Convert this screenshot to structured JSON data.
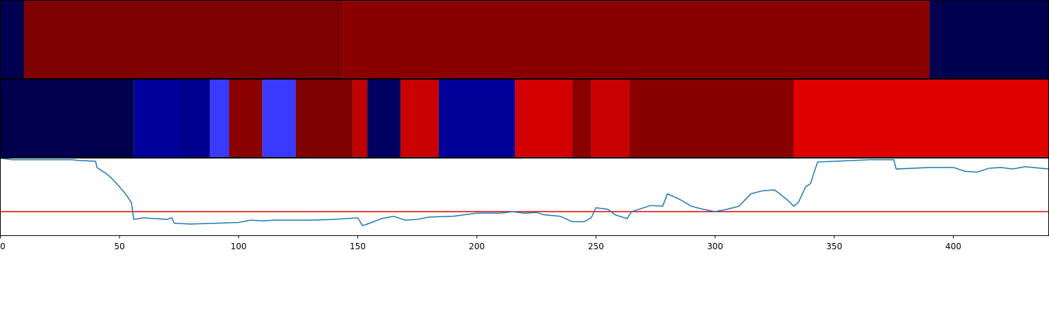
{
  "chart_data": {
    "type": "segmentation",
    "xlim": [
      0,
      440
    ],
    "xticks": [
      0,
      50,
      100,
      150,
      200,
      250,
      300,
      350,
      400
    ],
    "tracks": [
      {
        "segments": [
          {
            "start": 0,
            "end": 10,
            "color": "#000050"
          },
          {
            "start": 10,
            "end": 144,
            "color": "#7f0000"
          },
          {
            "start": 144,
            "end": 390,
            "color": "#8a0000"
          },
          {
            "start": 390,
            "end": 440,
            "color": "#000050"
          }
        ]
      },
      {
        "segments": [
          {
            "start": 0,
            "end": 56,
            "color": "#00004c"
          },
          {
            "start": 56,
            "end": 75,
            "color": "#00009a"
          },
          {
            "start": 75,
            "end": 88,
            "color": "#00008f"
          },
          {
            "start": 88,
            "end": 96,
            "color": "#3a3aff"
          },
          {
            "start": 96,
            "end": 110,
            "color": "#8b0000"
          },
          {
            "start": 110,
            "end": 124,
            "color": "#3a3aff"
          },
          {
            "start": 124,
            "end": 148,
            "color": "#7f0000"
          },
          {
            "start": 148,
            "end": 154,
            "color": "#c00000"
          },
          {
            "start": 154,
            "end": 168,
            "color": "#000060"
          },
          {
            "start": 168,
            "end": 184,
            "color": "#c80000"
          },
          {
            "start": 184,
            "end": 216,
            "color": "#000099"
          },
          {
            "start": 216,
            "end": 240,
            "color": "#d40000"
          },
          {
            "start": 240,
            "end": 248,
            "color": "#8b0000"
          },
          {
            "start": 248,
            "end": 264,
            "color": "#c80000"
          },
          {
            "start": 264,
            "end": 333,
            "color": "#880000"
          },
          {
            "start": 333,
            "end": 440,
            "color": "#e00000"
          }
        ]
      }
    ],
    "line": {
      "color": "#1f77b4",
      "ylim": [
        0,
        1
      ],
      "x": [
        0,
        5,
        30,
        33,
        40,
        40.5,
        45,
        48,
        52,
        55,
        56,
        60,
        70,
        72,
        73,
        80,
        90,
        100,
        105,
        110,
        115,
        120,
        130,
        140,
        150,
        152,
        155,
        160,
        165,
        170,
        175,
        180,
        190,
        200,
        210,
        215,
        220,
        225,
        228,
        235,
        240,
        245,
        248,
        250,
        255,
        258,
        263,
        265,
        270,
        273,
        278,
        280,
        285,
        290,
        295,
        300,
        305,
        310,
        315,
        320,
        325,
        330,
        333,
        335,
        338,
        340,
        343,
        350,
        365,
        375,
        376,
        390,
        400,
        405,
        410,
        415,
        420,
        425,
        430,
        440
      ],
      "values": [
        1.0,
        0.98,
        0.98,
        0.97,
        0.96,
        0.88,
        0.79,
        0.7,
        0.56,
        0.43,
        0.21,
        0.23,
        0.21,
        0.23,
        0.16,
        0.15,
        0.16,
        0.17,
        0.2,
        0.19,
        0.2,
        0.2,
        0.2,
        0.21,
        0.23,
        0.13,
        0.16,
        0.22,
        0.25,
        0.2,
        0.21,
        0.24,
        0.25,
        0.29,
        0.29,
        0.31,
        0.29,
        0.3,
        0.27,
        0.25,
        0.18,
        0.18,
        0.23,
        0.36,
        0.34,
        0.27,
        0.22,
        0.31,
        0.36,
        0.39,
        0.38,
        0.54,
        0.47,
        0.38,
        0.34,
        0.31,
        0.34,
        0.38,
        0.54,
        0.58,
        0.59,
        0.47,
        0.38,
        0.43,
        0.63,
        0.67,
        0.95,
        0.96,
        0.98,
        0.98,
        0.86,
        0.88,
        0.88,
        0.83,
        0.82,
        0.87,
        0.88,
        0.86,
        0.89,
        0.86
      ]
    },
    "hline": {
      "value": 0.31,
      "color": "#e00000"
    }
  }
}
